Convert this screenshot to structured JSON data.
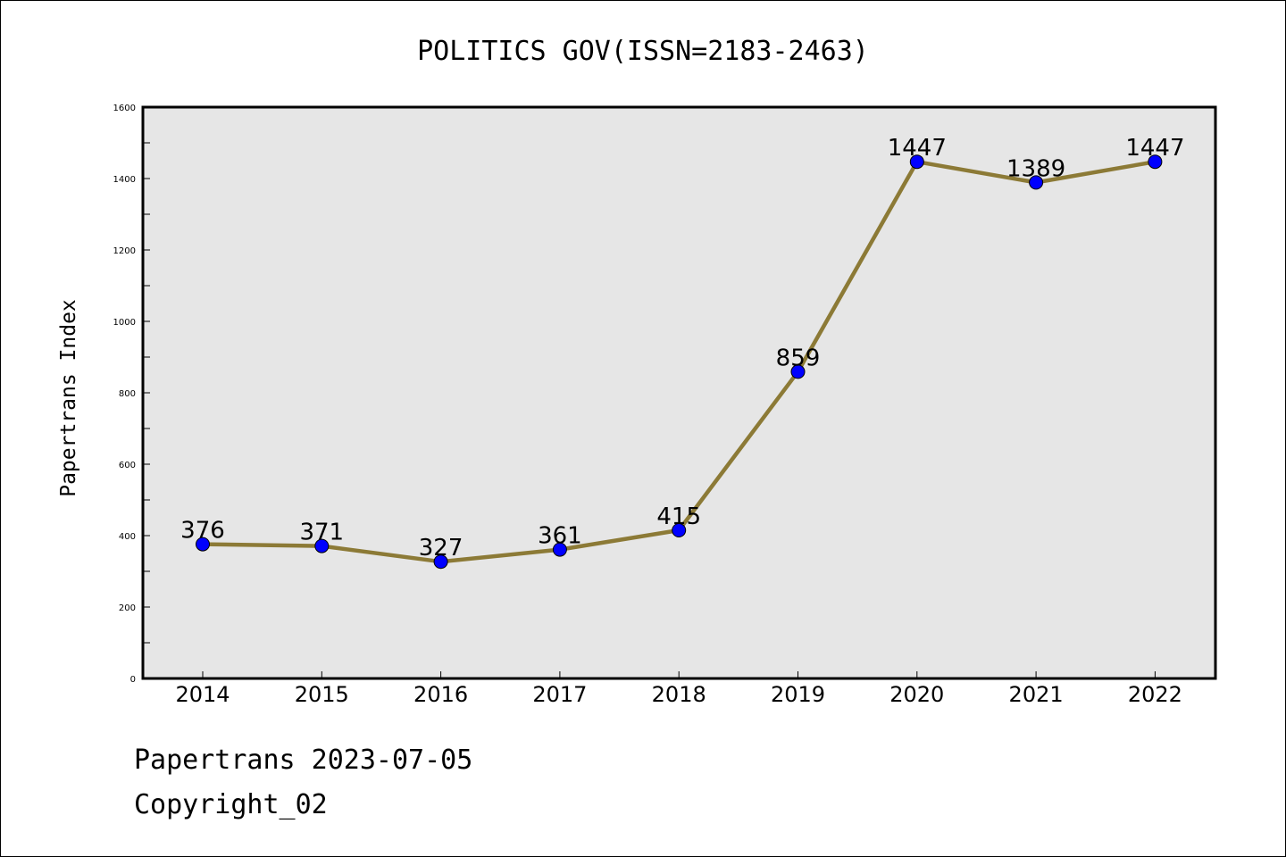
{
  "chart_data": {
    "type": "line",
    "title": "POLITICS GOV(ISSN=2183-2463)",
    "xlabel": "",
    "ylabel": "Papertrans Index",
    "categories": [
      "2014",
      "2015",
      "2016",
      "2017",
      "2018",
      "2019",
      "2020",
      "2021",
      "2022"
    ],
    "series": [
      {
        "values": [
          376,
          371,
          327,
          361,
          415,
          859,
          1447,
          1389,
          1447
        ]
      }
    ],
    "ylim": [
      0,
      1600
    ],
    "yticks": [
      0,
      200,
      400,
      600,
      800,
      1000,
      1200,
      1400,
      1600
    ],
    "grid": false,
    "data_labels": true,
    "colors": {
      "line": "#8c7a36",
      "marker": "#0000ff",
      "plot_background": "#e6e6e6"
    }
  },
  "footer": {
    "date_text": "Papertrans 2023-07-05",
    "copyright_text": "Copyright_02"
  }
}
